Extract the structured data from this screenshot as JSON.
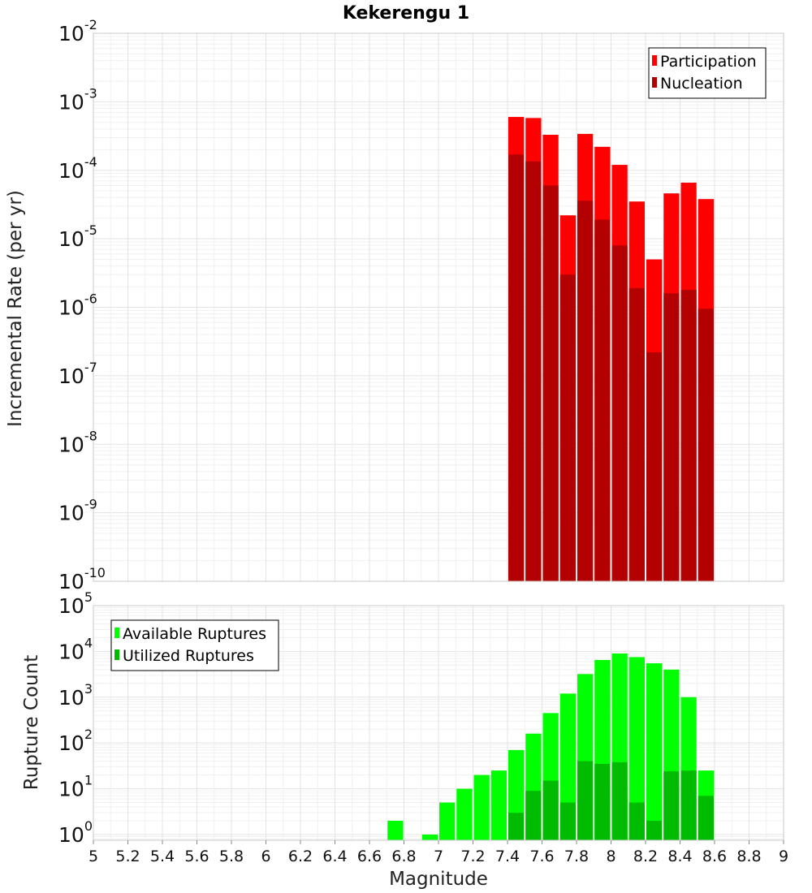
{
  "chart_data": [
    {
      "type": "bar",
      "title": "Kekerengu 1",
      "ylabel": "Incremental Rate (per yr)",
      "xlabel": "",
      "yscale": "log",
      "ylim": [
        1e-10,
        0.01
      ],
      "xlim": [
        5,
        9
      ],
      "bar_width": 0.1,
      "legend_position": "top-right",
      "grid": true,
      "x": [
        7.45,
        7.55,
        7.65,
        7.75,
        7.85,
        7.95,
        8.05,
        8.15,
        8.25,
        8.35,
        8.45,
        8.55
      ],
      "series": [
        {
          "name": "Participation",
          "color": "#ff0000",
          "values": [
            0.0006,
            0.00058,
            0.00033,
            2.2e-05,
            0.00034,
            0.00022,
            0.00012,
            3.5e-05,
            5e-06,
            4.6e-05,
            6.6e-05,
            3.8e-05
          ]
        },
        {
          "name": "Nucleation",
          "color": "#b30000",
          "values": [
            0.00017,
            0.000135,
            6e-05,
            3e-06,
            3.6e-05,
            1.9e-05,
            8e-06,
            1.9e-06,
            2.2e-07,
            1.6e-06,
            1.8e-06,
            9.5e-07
          ]
        }
      ]
    },
    {
      "type": "bar",
      "title": "",
      "ylabel": "Rupture Count",
      "xlabel": "Magnitude",
      "yscale": "log",
      "ylim": [
        0.75,
        100000.0
      ],
      "xlim": [
        5,
        9
      ],
      "bar_width": 0.1,
      "legend_position": "top-left",
      "grid": true,
      "x_ticks": [
        "5",
        "5.2",
        "5.4",
        "5.6",
        "5.8",
        "6",
        "6.2",
        "6.4",
        "6.6",
        "6.8",
        "7",
        "7.2",
        "7.4",
        "7.6",
        "7.8",
        "8",
        "8.2",
        "8.4",
        "8.6",
        "8.8",
        "9"
      ],
      "x": [
        6.75,
        6.95,
        7.05,
        7.15,
        7.25,
        7.35,
        7.45,
        7.55,
        7.65,
        7.75,
        7.85,
        7.95,
        8.05,
        8.15,
        8.25,
        8.35,
        8.45,
        8.55
      ],
      "series": [
        {
          "name": "Available Ruptures",
          "color": "#00ff00",
          "values": [
            2,
            1,
            5,
            10,
            20,
            25,
            70,
            160,
            450,
            1200,
            3200,
            6500,
            9000,
            7500,
            5500,
            4000,
            1000,
            25
          ]
        },
        {
          "name": "Utilized Ruptures",
          "color": "#00bb00",
          "values": [
            0,
            0,
            0,
            0,
            0,
            0,
            3,
            9,
            15,
            5,
            40,
            35,
            38,
            5,
            2,
            24,
            25,
            7
          ]
        }
      ]
    }
  ]
}
